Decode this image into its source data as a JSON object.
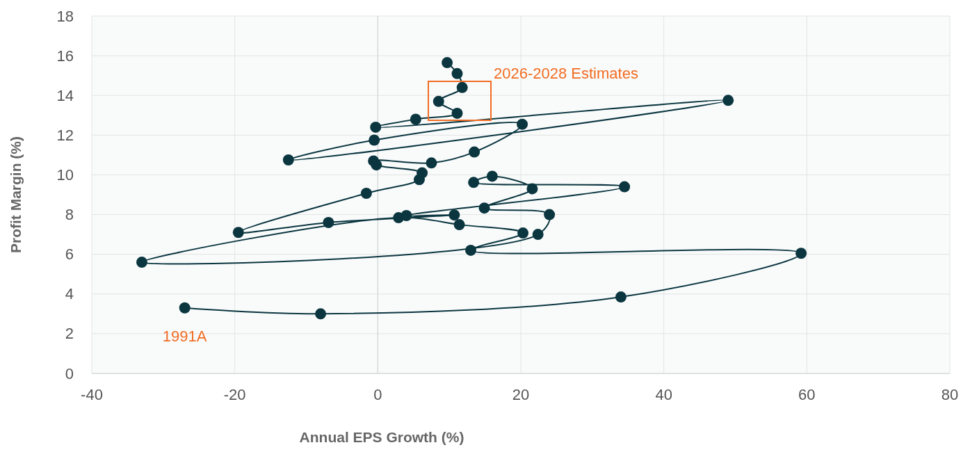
{
  "chart_data": {
    "type": "line",
    "xlabel": "Annual EPS Growth (%)",
    "ylabel": "Profit Margin (%)",
    "x": [
      -27,
      -8,
      34,
      59.2,
      13,
      20.3,
      11.4,
      2.9,
      -33,
      22.4,
      24,
      14.9,
      21.6,
      16,
      13.4,
      34.5,
      4,
      10.7,
      -6.9,
      -19.5,
      -1.6,
      5.8,
      6.2,
      -0.2,
      -0.6,
      7.5,
      13.5,
      20.2,
      -0.5,
      -12.5,
      49,
      -0.3,
      5.3,
      11.1,
      8.5,
      11.8,
      11.1,
      9.7
    ],
    "series": [
      {
        "color": "#0b3640",
        "values": [
          3.3,
          3.0,
          3.85,
          6.05,
          6.2,
          7.07,
          7.49,
          7.84,
          5.6,
          7.0,
          8.0,
          8.33,
          9.3,
          9.93,
          9.62,
          9.4,
          7.95,
          7.98,
          7.6,
          7.1,
          9.07,
          9.76,
          10.1,
          10.5,
          10.7,
          10.6,
          11.15,
          12.55,
          11.75,
          10.75,
          13.75,
          12.4,
          12.8,
          13.1,
          13.7,
          14.4,
          15.1,
          15.65
        ]
      }
    ],
    "xlim": [
      -40,
      80
    ],
    "xticks": [
      -40,
      -20,
      0,
      20,
      40,
      60,
      80
    ],
    "ylim": [
      0,
      18
    ],
    "yticks": [
      0,
      2,
      4,
      6,
      8,
      10,
      12,
      14,
      16,
      18
    ],
    "grid": true,
    "marker": "circle",
    "line_style": "solid",
    "annotations": [
      {
        "text": "1991A",
        "x": -27,
        "y": 3.3
      },
      "2026-2028 Estimates"
    ]
  }
}
